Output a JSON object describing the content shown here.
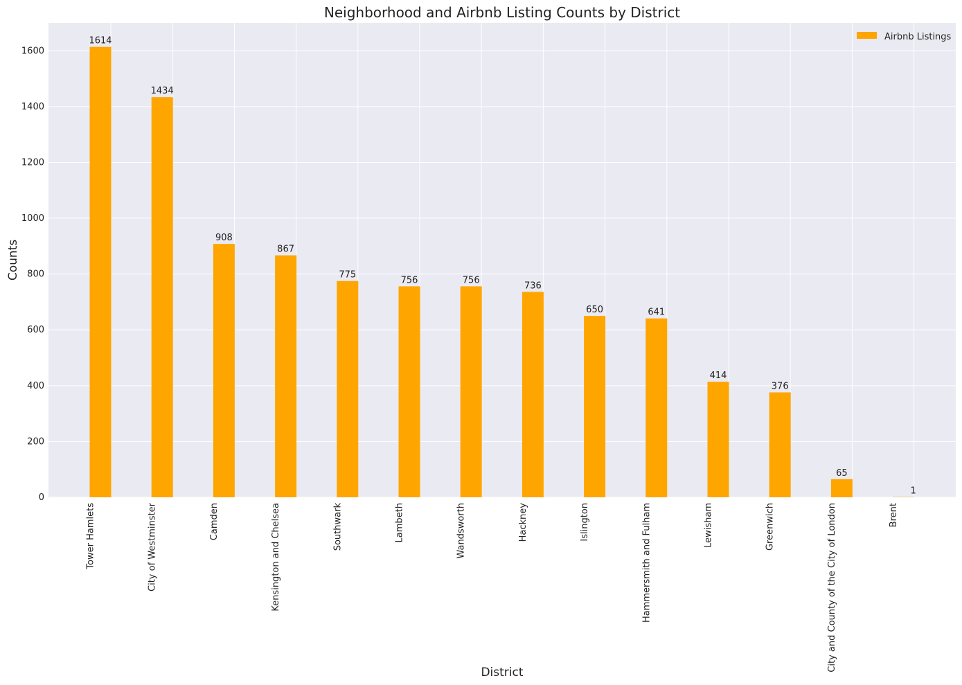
{
  "chart_data": {
    "type": "bar",
    "title": "Neighborhood and Airbnb Listing Counts by District",
    "xlabel": "District",
    "ylabel": "Counts",
    "ylim": [
      0,
      1700
    ],
    "yticks": [
      0,
      200,
      400,
      600,
      800,
      1000,
      1200,
      1400,
      1600
    ],
    "grid": true,
    "legend_position": "top-right",
    "categories": [
      "Tower Hamlets",
      "City of Westminster",
      "Camden",
      "Kensington and Chelsea",
      "Southwark",
      "Lambeth",
      "Wandsworth",
      "Hackney",
      "Islington",
      "Hammersmith and Fulham",
      "Lewisham",
      "Greenwich",
      "City and County of the City of London",
      "Brent"
    ],
    "series": [
      {
        "name": "Airbnb Listings",
        "color": "#FFA500",
        "values": [
          1614,
          1434,
          908,
          867,
          775,
          756,
          756,
          736,
          650,
          641,
          414,
          376,
          65,
          1
        ]
      }
    ],
    "colors": {
      "plot_background": "#EAEAF2",
      "grid": "#FFFFFF"
    }
  }
}
